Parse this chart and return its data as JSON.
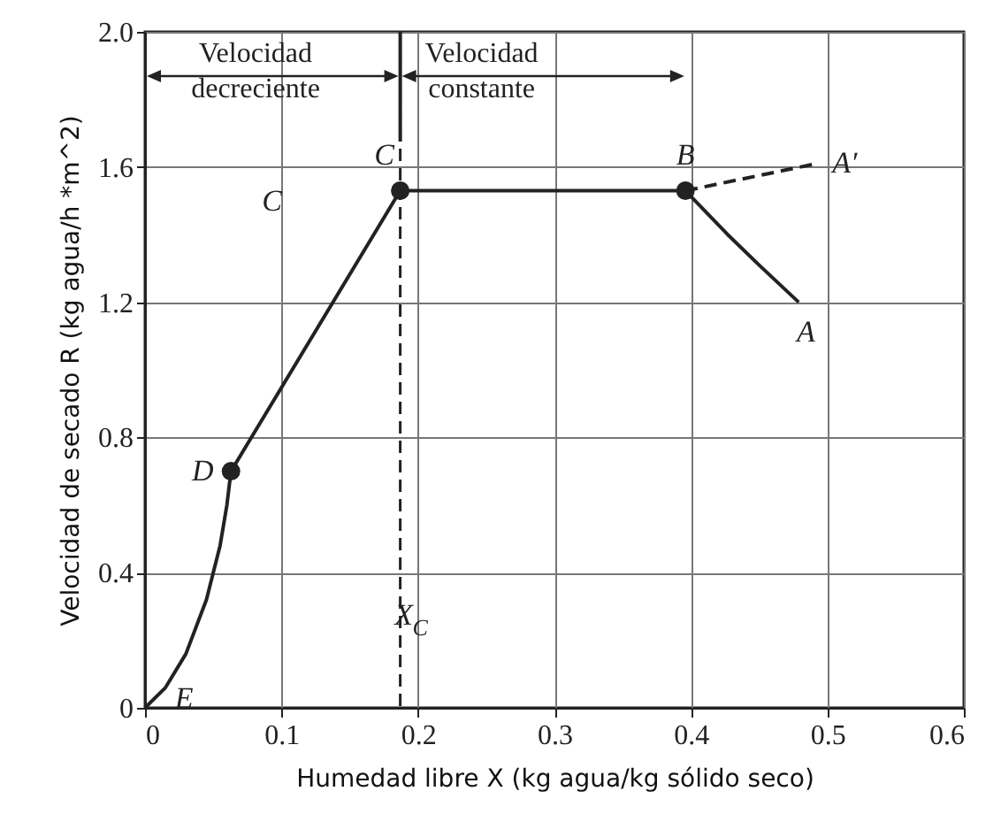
{
  "chart_data": {
    "type": "line",
    "xlabel": "Humedad libre X (kg agua/kg sólido seco)",
    "ylabel": "Velocidad de secado R (kg agua/h *m^2)",
    "xlim": [
      0,
      0.6
    ],
    "ylim": [
      0,
      2
    ],
    "xticks": [
      0,
      0.1,
      0.2,
      0.3,
      0.4,
      0.5,
      0.6
    ],
    "yticks": [
      0,
      0.4,
      0.8,
      1.2,
      1.6,
      {
        "value": 2,
        "label": "2.0"
      }
    ],
    "grid": true,
    "series": [
      {
        "type": "line",
        "color": "#222222",
        "line_style": "solid",
        "x": [
          0,
          0.015,
          0.03,
          0.045,
          0.055,
          0.06,
          0.063,
          0.187,
          0.396,
          0.427,
          0.45,
          0.479
        ],
        "values": [
          0,
          0.06,
          0.16,
          0.32,
          0.48,
          0.6,
          0.7,
          1.53,
          1.53,
          1.4,
          1.31,
          1.2
        ]
      },
      {
        "type": "line",
        "color": "#222222",
        "line_style": "dashed",
        "x": [
          0.396,
          0.492
        ],
        "values": [
          1.53,
          1.61
        ]
      },
      {
        "type": "scatter",
        "color": "#222222",
        "marker": "circle",
        "x": [
          0.063,
          0.187,
          0.396
        ],
        "values": [
          0.7,
          1.53,
          1.53
        ]
      }
    ],
    "ref_lines": [
      {
        "axis": "x",
        "value": 0.187,
        "label": "X$_{C}$",
        "line_style": "dashed"
      }
    ],
    "annotations": [
      "Velocidad decreciente",
      {
        "text": "Velocidad constante",
        "x": 0.187,
        "y": 2
      },
      "C",
      {
        "text": "C",
        "x": 0.187,
        "y": 1.53
      },
      {
        "text": "B",
        "x": 0.396,
        "y": 1.53
      },
      {
        "text": "A′",
        "x": 0.492,
        "y": 1.61
      },
      {
        "text": "A",
        "x": 0.479,
        "y": 1.2
      },
      {
        "text": "D",
        "x": 0.063,
        "y": 0.7
      },
      {
        "text": "E",
        "x": 0,
        "y": 0
      }
    ]
  }
}
